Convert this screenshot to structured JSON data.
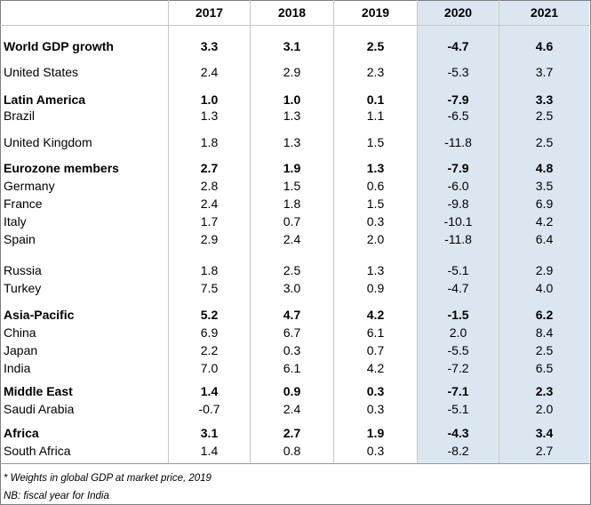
{
  "columns": [
    "2017",
    "2018",
    "2019",
    "2020",
    "2021"
  ],
  "rows": [
    {
      "label": "World GDP growth",
      "bold": true,
      "values": [
        "3.3",
        "3.1",
        "2.5",
        "-4.7",
        "4.6"
      ]
    },
    {
      "label": "United States",
      "bold": false,
      "values": [
        "2.4",
        "2.9",
        "2.3",
        "-5.3",
        "3.7"
      ]
    },
    {
      "label": "Latin America",
      "bold": true,
      "values": [
        "1.0",
        "1.0",
        "0.1",
        "-7.9",
        "3.3"
      ]
    },
    {
      "label": "Brazil",
      "bold": false,
      "values": [
        "1.3",
        "1.3",
        "1.1",
        "-6.5",
        "2.5"
      ]
    },
    {
      "label": "United Kingdom",
      "bold": false,
      "values": [
        "1.8",
        "1.3",
        "1.5",
        "-11.8",
        "2.5"
      ]
    },
    {
      "label": "Eurozone members",
      "bold": true,
      "values": [
        "2.7",
        "1.9",
        "1.3",
        "-7.9",
        "4.8"
      ]
    },
    {
      "label": "Germany",
      "bold": false,
      "values": [
        "2.8",
        "1.5",
        "0.6",
        "-6.0",
        "3.5"
      ]
    },
    {
      "label": "France",
      "bold": false,
      "values": [
        "2.4",
        "1.8",
        "1.5",
        "-9.8",
        "6.9"
      ]
    },
    {
      "label": "Italy",
      "bold": false,
      "values": [
        "1.7",
        "0.7",
        "0.3",
        "-10.1",
        "4.2"
      ]
    },
    {
      "label": "Spain",
      "bold": false,
      "values": [
        "2.9",
        "2.4",
        "2.0",
        "-11.8",
        "6.4"
      ]
    },
    {
      "label": "Russia",
      "bold": false,
      "values": [
        "1.8",
        "2.5",
        "1.3",
        "-5.1",
        "2.9"
      ]
    },
    {
      "label": "Turkey",
      "bold": false,
      "values": [
        "7.5",
        "3.0",
        "0.9",
        "-4.7",
        "4.0"
      ]
    },
    {
      "label": "Asia-Pacific",
      "bold": true,
      "values": [
        "5.2",
        "4.7",
        "4.2",
        "-1.5",
        "6.2"
      ]
    },
    {
      "label": "China",
      "bold": false,
      "values": [
        "6.9",
        "6.7",
        "6.1",
        "2.0",
        "8.4"
      ]
    },
    {
      "label": "Japan",
      "bold": false,
      "values": [
        "2.2",
        "0.3",
        "0.7",
        "-5.5",
        "2.5"
      ]
    },
    {
      "label": "India",
      "bold": false,
      "values": [
        "7.0",
        "6.1",
        "4.2",
        "-7.2",
        "6.5"
      ]
    },
    {
      "label": "Middle East",
      "bold": true,
      "values": [
        "1.4",
        "0.9",
        "0.3",
        "-7.1",
        "2.3"
      ]
    },
    {
      "label": "Saudi Arabia",
      "bold": false,
      "values": [
        "-0.7",
        "2.4",
        "0.3",
        "-5.1",
        "2.0"
      ]
    },
    {
      "label": "Africa",
      "bold": true,
      "values": [
        "3.1",
        "2.7",
        "1.9",
        "-4.3",
        "3.4"
      ]
    },
    {
      "label": "South Africa",
      "bold": false,
      "values": [
        "1.4",
        "0.8",
        "0.3",
        "-8.2",
        "2.7"
      ]
    }
  ],
  "footnotes": [
    "* Weights in global GDP at market price, 2019",
    "NB: fiscal year for India"
  ],
  "colors": {
    "forecast_shade": "#dce6f1",
    "grid": "#c7c7c7"
  }
}
